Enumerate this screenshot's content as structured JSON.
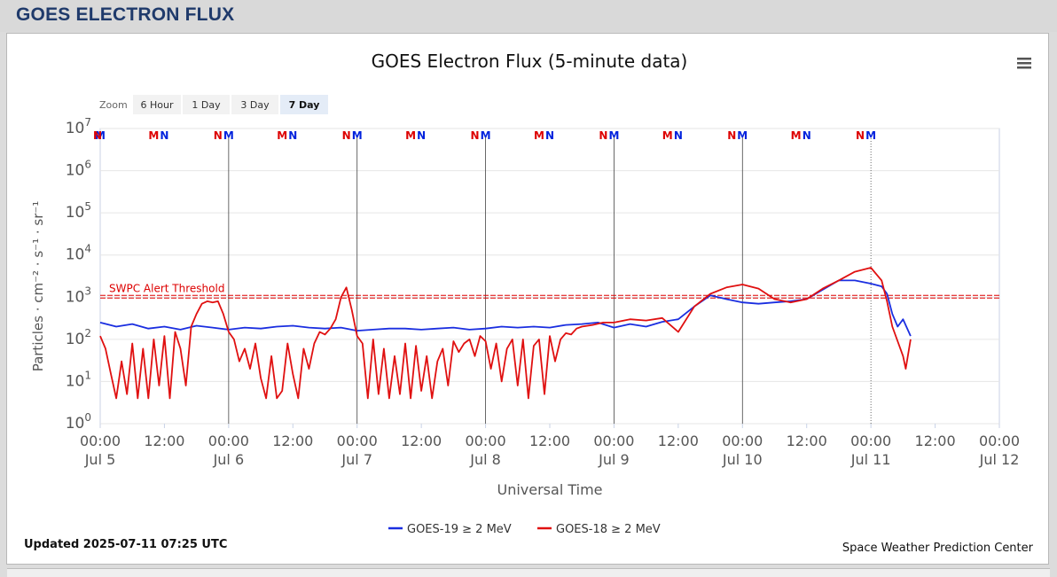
{
  "page": {
    "title": "GOES ELECTRON FLUX"
  },
  "chart_data": {
    "type": "line",
    "title": "GOES Electron Flux (5-minute data)",
    "xlabel": "Universal Time",
    "ylabel": "Particles · cm⁻² · s⁻¹ · sr⁻¹",
    "y_scale": "log",
    "ylim": [
      1,
      10000000
    ],
    "y_ticks": [
      {
        "value": 1,
        "base": "10",
        "exp": "0"
      },
      {
        "value": 10,
        "base": "10",
        "exp": "1"
      },
      {
        "value": 100,
        "base": "10",
        "exp": "2"
      },
      {
        "value": 1000,
        "base": "10",
        "exp": "3"
      },
      {
        "value": 10000,
        "base": "10",
        "exp": "4"
      },
      {
        "value": 100000,
        "base": "10",
        "exp": "5"
      },
      {
        "value": 1000000,
        "base": "10",
        "exp": "6"
      },
      {
        "value": 10000000,
        "base": "10",
        "exp": "7"
      }
    ],
    "xlim": [
      "2025-07-05 00:00",
      "2025-07-12 00:00"
    ],
    "x_ticks": [
      {
        "time": "2025-07-05 00:00",
        "label": "00:00",
        "date": "Jul 5"
      },
      {
        "time": "2025-07-05 12:00",
        "label": "12:00",
        "date": ""
      },
      {
        "time": "2025-07-06 00:00",
        "label": "00:00",
        "date": "Jul 6"
      },
      {
        "time": "2025-07-06 12:00",
        "label": "12:00",
        "date": ""
      },
      {
        "time": "2025-07-07 00:00",
        "label": "00:00",
        "date": "Jul 7"
      },
      {
        "time": "2025-07-07 12:00",
        "label": "12:00",
        "date": ""
      },
      {
        "time": "2025-07-08 00:00",
        "label": "00:00",
        "date": "Jul 8"
      },
      {
        "time": "2025-07-08 12:00",
        "label": "12:00",
        "date": ""
      },
      {
        "time": "2025-07-09 00:00",
        "label": "00:00",
        "date": "Jul 9"
      },
      {
        "time": "2025-07-09 12:00",
        "label": "12:00",
        "date": ""
      },
      {
        "time": "2025-07-10 00:00",
        "label": "00:00",
        "date": "Jul 10"
      },
      {
        "time": "2025-07-10 12:00",
        "label": "12:00",
        "date": ""
      },
      {
        "time": "2025-07-11 00:00",
        "label": "00:00",
        "date": "Jul 11"
      },
      {
        "time": "2025-07-11 12:00",
        "label": "12:00",
        "date": ""
      },
      {
        "time": "2025-07-12 00:00",
        "label": "00:00",
        "date": "Jul 12"
      }
    ],
    "threshold": {
      "label": "SWPC Alert Threshold",
      "value": 1000,
      "color": "#dd0000"
    },
    "day_lines": [
      "2025-07-06 00:00",
      "2025-07-07 00:00",
      "2025-07-08 00:00",
      "2025-07-09 00:00",
      "2025-07-10 00:00"
    ],
    "current_time_line": "2025-07-11 00:00",
    "markers": [
      {
        "time": "2025-07-05 00:00",
        "letter": "M",
        "color": "#0022dd"
      },
      {
        "time": "2025-07-05 00:00",
        "letter": "N",
        "color": "#dd0000"
      },
      {
        "time": "2025-07-05 10:00",
        "letter": "M",
        "color": "#dd0000"
      },
      {
        "time": "2025-07-05 12:00",
        "letter": "N",
        "color": "#0022dd"
      },
      {
        "time": "2025-07-05 22:00",
        "letter": "N",
        "color": "#dd0000"
      },
      {
        "time": "2025-07-06 00:00",
        "letter": "M",
        "color": "#0022dd"
      },
      {
        "time": "2025-07-06 10:00",
        "letter": "M",
        "color": "#dd0000"
      },
      {
        "time": "2025-07-06 12:00",
        "letter": "N",
        "color": "#0022dd"
      },
      {
        "time": "2025-07-06 22:00",
        "letter": "N",
        "color": "#dd0000"
      },
      {
        "time": "2025-07-07 00:00",
        "letter": "M",
        "color": "#0022dd"
      },
      {
        "time": "2025-07-07 10:00",
        "letter": "M",
        "color": "#dd0000"
      },
      {
        "time": "2025-07-07 12:00",
        "letter": "N",
        "color": "#0022dd"
      },
      {
        "time": "2025-07-07 22:00",
        "letter": "N",
        "color": "#dd0000"
      },
      {
        "time": "2025-07-08 00:00",
        "letter": "M",
        "color": "#0022dd"
      },
      {
        "time": "2025-07-08 10:00",
        "letter": "M",
        "color": "#dd0000"
      },
      {
        "time": "2025-07-08 12:00",
        "letter": "N",
        "color": "#0022dd"
      },
      {
        "time": "2025-07-08 22:00",
        "letter": "N",
        "color": "#dd0000"
      },
      {
        "time": "2025-07-09 00:00",
        "letter": "M",
        "color": "#0022dd"
      },
      {
        "time": "2025-07-09 10:00",
        "letter": "M",
        "color": "#dd0000"
      },
      {
        "time": "2025-07-09 12:00",
        "letter": "N",
        "color": "#0022dd"
      },
      {
        "time": "2025-07-09 22:00",
        "letter": "N",
        "color": "#dd0000"
      },
      {
        "time": "2025-07-10 00:00",
        "letter": "M",
        "color": "#0022dd"
      },
      {
        "time": "2025-07-10 10:00",
        "letter": "M",
        "color": "#dd0000"
      },
      {
        "time": "2025-07-10 12:00",
        "letter": "N",
        "color": "#0022dd"
      },
      {
        "time": "2025-07-10 22:00",
        "letter": "N",
        "color": "#dd0000"
      },
      {
        "time": "2025-07-11 00:00",
        "letter": "M",
        "color": "#0022dd"
      }
    ],
    "series": [
      {
        "name": "GOES-19 ≥ 2 MeV",
        "color": "#1a2ee0",
        "points": [
          [
            "2025-07-05 00:00",
            250
          ],
          [
            "2025-07-05 03:00",
            200
          ],
          [
            "2025-07-05 06:00",
            230
          ],
          [
            "2025-07-05 09:00",
            180
          ],
          [
            "2025-07-05 12:00",
            200
          ],
          [
            "2025-07-05 15:00",
            170
          ],
          [
            "2025-07-05 18:00",
            210
          ],
          [
            "2025-07-05 21:00",
            190
          ],
          [
            "2025-07-06 00:00",
            170
          ],
          [
            "2025-07-06 03:00",
            190
          ],
          [
            "2025-07-06 06:00",
            180
          ],
          [
            "2025-07-06 09:00",
            200
          ],
          [
            "2025-07-06 12:00",
            210
          ],
          [
            "2025-07-06 15:00",
            190
          ],
          [
            "2025-07-06 18:00",
            180
          ],
          [
            "2025-07-06 21:00",
            190
          ],
          [
            "2025-07-07 00:00",
            160
          ],
          [
            "2025-07-07 03:00",
            170
          ],
          [
            "2025-07-07 06:00",
            180
          ],
          [
            "2025-07-07 09:00",
            180
          ],
          [
            "2025-07-07 12:00",
            170
          ],
          [
            "2025-07-07 15:00",
            180
          ],
          [
            "2025-07-07 18:00",
            190
          ],
          [
            "2025-07-07 21:00",
            170
          ],
          [
            "2025-07-08 00:00",
            180
          ],
          [
            "2025-07-08 03:00",
            200
          ],
          [
            "2025-07-08 06:00",
            190
          ],
          [
            "2025-07-08 09:00",
            200
          ],
          [
            "2025-07-08 12:00",
            190
          ],
          [
            "2025-07-08 15:00",
            220
          ],
          [
            "2025-07-08 18:00",
            230
          ],
          [
            "2025-07-08 21:00",
            250
          ],
          [
            "2025-07-09 00:00",
            190
          ],
          [
            "2025-07-09 03:00",
            230
          ],
          [
            "2025-07-09 06:00",
            200
          ],
          [
            "2025-07-09 09:00",
            260
          ],
          [
            "2025-07-09 12:00",
            300
          ],
          [
            "2025-07-09 15:00",
            600
          ],
          [
            "2025-07-09 18:00",
            1100
          ],
          [
            "2025-07-09 21:00",
            900
          ],
          [
            "2025-07-10 00:00",
            750
          ],
          [
            "2025-07-10 03:00",
            700
          ],
          [
            "2025-07-10 06:00",
            750
          ],
          [
            "2025-07-10 09:00",
            800
          ],
          [
            "2025-07-10 12:00",
            900
          ],
          [
            "2025-07-10 15:00",
            1500
          ],
          [
            "2025-07-10 18:00",
            2500
          ],
          [
            "2025-07-10 21:00",
            2500
          ],
          [
            "2025-07-11 00:00",
            2100
          ],
          [
            "2025-07-11 02:00",
            1800
          ],
          [
            "2025-07-11 03:00",
            1200
          ],
          [
            "2025-07-11 04:00",
            400
          ],
          [
            "2025-07-11 05:00",
            200
          ],
          [
            "2025-07-11 06:00",
            300
          ],
          [
            "2025-07-11 07:25",
            120
          ]
        ]
      },
      {
        "name": "GOES-18 ≥ 2 MeV",
        "color": "#e01010",
        "points": [
          [
            "2025-07-05 00:00",
            120
          ],
          [
            "2025-07-05 01:00",
            60
          ],
          [
            "2025-07-05 02:00",
            15
          ],
          [
            "2025-07-05 03:00",
            4
          ],
          [
            "2025-07-05 04:00",
            30
          ],
          [
            "2025-07-05 05:00",
            5
          ],
          [
            "2025-07-05 06:00",
            80
          ],
          [
            "2025-07-05 07:00",
            4
          ],
          [
            "2025-07-05 08:00",
            60
          ],
          [
            "2025-07-05 09:00",
            4
          ],
          [
            "2025-07-05 10:00",
            100
          ],
          [
            "2025-07-05 11:00",
            8
          ],
          [
            "2025-07-05 12:00",
            120
          ],
          [
            "2025-07-05 13:00",
            4
          ],
          [
            "2025-07-05 14:00",
            150
          ],
          [
            "2025-07-05 15:00",
            60
          ],
          [
            "2025-07-05 16:00",
            8
          ],
          [
            "2025-07-05 17:00",
            200
          ],
          [
            "2025-07-05 18:00",
            400
          ],
          [
            "2025-07-05 19:00",
            700
          ],
          [
            "2025-07-05 20:00",
            800
          ],
          [
            "2025-07-05 21:00",
            750
          ],
          [
            "2025-07-05 22:00",
            800
          ],
          [
            "2025-07-05 23:00",
            400
          ],
          [
            "2025-07-06 00:00",
            150
          ],
          [
            "2025-07-06 01:00",
            100
          ],
          [
            "2025-07-06 02:00",
            30
          ],
          [
            "2025-07-06 03:00",
            60
          ],
          [
            "2025-07-06 04:00",
            20
          ],
          [
            "2025-07-06 05:00",
            80
          ],
          [
            "2025-07-06 06:00",
            12
          ],
          [
            "2025-07-06 07:00",
            4
          ],
          [
            "2025-07-06 08:00",
            40
          ],
          [
            "2025-07-06 09:00",
            4
          ],
          [
            "2025-07-06 10:00",
            6
          ],
          [
            "2025-07-06 11:00",
            80
          ],
          [
            "2025-07-06 12:00",
            15
          ],
          [
            "2025-07-06 13:00",
            4
          ],
          [
            "2025-07-06 14:00",
            60
          ],
          [
            "2025-07-06 15:00",
            20
          ],
          [
            "2025-07-06 16:00",
            80
          ],
          [
            "2025-07-06 17:00",
            150
          ],
          [
            "2025-07-06 18:00",
            130
          ],
          [
            "2025-07-06 19:00",
            180
          ],
          [
            "2025-07-06 20:00",
            300
          ],
          [
            "2025-07-06 21:00",
            1000
          ],
          [
            "2025-07-06 22:00",
            1700
          ],
          [
            "2025-07-06 23:00",
            500
          ],
          [
            "2025-07-07 00:00",
            120
          ],
          [
            "2025-07-07 01:00",
            80
          ],
          [
            "2025-07-07 02:00",
            4
          ],
          [
            "2025-07-07 03:00",
            100
          ],
          [
            "2025-07-07 04:00",
            5
          ],
          [
            "2025-07-07 05:00",
            60
          ],
          [
            "2025-07-07 06:00",
            4
          ],
          [
            "2025-07-07 07:00",
            40
          ],
          [
            "2025-07-07 08:00",
            5
          ],
          [
            "2025-07-07 09:00",
            80
          ],
          [
            "2025-07-07 10:00",
            4
          ],
          [
            "2025-07-07 11:00",
            70
          ],
          [
            "2025-07-07 12:00",
            6
          ],
          [
            "2025-07-07 13:00",
            40
          ],
          [
            "2025-07-07 14:00",
            4
          ],
          [
            "2025-07-07 15:00",
            30
          ],
          [
            "2025-07-07 16:00",
            60
          ],
          [
            "2025-07-07 17:00",
            8
          ],
          [
            "2025-07-07 18:00",
            90
          ],
          [
            "2025-07-07 19:00",
            50
          ],
          [
            "2025-07-07 20:00",
            80
          ],
          [
            "2025-07-07 21:00",
            100
          ],
          [
            "2025-07-07 22:00",
            40
          ],
          [
            "2025-07-07 23:00",
            120
          ],
          [
            "2025-07-08 00:00",
            90
          ],
          [
            "2025-07-08 01:00",
            20
          ],
          [
            "2025-07-08 02:00",
            80
          ],
          [
            "2025-07-08 03:00",
            10
          ],
          [
            "2025-07-08 04:00",
            60
          ],
          [
            "2025-07-08 05:00",
            100
          ],
          [
            "2025-07-08 06:00",
            8
          ],
          [
            "2025-07-08 07:00",
            100
          ],
          [
            "2025-07-08 08:00",
            4
          ],
          [
            "2025-07-08 09:00",
            70
          ],
          [
            "2025-07-08 10:00",
            100
          ],
          [
            "2025-07-08 11:00",
            5
          ],
          [
            "2025-07-08 12:00",
            120
          ],
          [
            "2025-07-08 13:00",
            30
          ],
          [
            "2025-07-08 14:00",
            100
          ],
          [
            "2025-07-08 15:00",
            140
          ],
          [
            "2025-07-08 16:00",
            130
          ],
          [
            "2025-07-08 17:00",
            180
          ],
          [
            "2025-07-08 18:00",
            200
          ],
          [
            "2025-07-08 20:00",
            220
          ],
          [
            "2025-07-08 22:00",
            250
          ],
          [
            "2025-07-09 00:00",
            250
          ],
          [
            "2025-07-09 03:00",
            300
          ],
          [
            "2025-07-09 06:00",
            280
          ],
          [
            "2025-07-09 09:00",
            320
          ],
          [
            "2025-07-09 12:00",
            150
          ],
          [
            "2025-07-09 15:00",
            600
          ],
          [
            "2025-07-09 18:00",
            1200
          ],
          [
            "2025-07-09 21:00",
            1700
          ],
          [
            "2025-07-10 00:00",
            2000
          ],
          [
            "2025-07-10 03:00",
            1600
          ],
          [
            "2025-07-10 06:00",
            900
          ],
          [
            "2025-07-10 09:00",
            750
          ],
          [
            "2025-07-10 12:00",
            900
          ],
          [
            "2025-07-10 15:00",
            1600
          ],
          [
            "2025-07-10 18:00",
            2500
          ],
          [
            "2025-07-10 21:00",
            4000
          ],
          [
            "2025-07-11 00:00",
            5000
          ],
          [
            "2025-07-11 02:00",
            2500
          ],
          [
            "2025-07-11 03:00",
            800
          ],
          [
            "2025-07-11 04:00",
            200
          ],
          [
            "2025-07-11 05:00",
            90
          ],
          [
            "2025-07-11 06:00",
            40
          ],
          [
            "2025-07-11 06:30",
            20
          ],
          [
            "2025-07-11 07:25",
            100
          ]
        ]
      }
    ],
    "zoom": {
      "label": "Zoom",
      "buttons": [
        "6 Hour",
        "1 Day",
        "3 Day",
        "7 Day"
      ],
      "selected": "7 Day"
    },
    "legend": {
      "placement": "bottom-center"
    },
    "grid": true,
    "footer": {
      "updated": "Updated 2025-07-11 07:25 UTC",
      "credit": "Space Weather Prediction Center"
    },
    "menu_icon": "hamburger-menu-icon"
  }
}
